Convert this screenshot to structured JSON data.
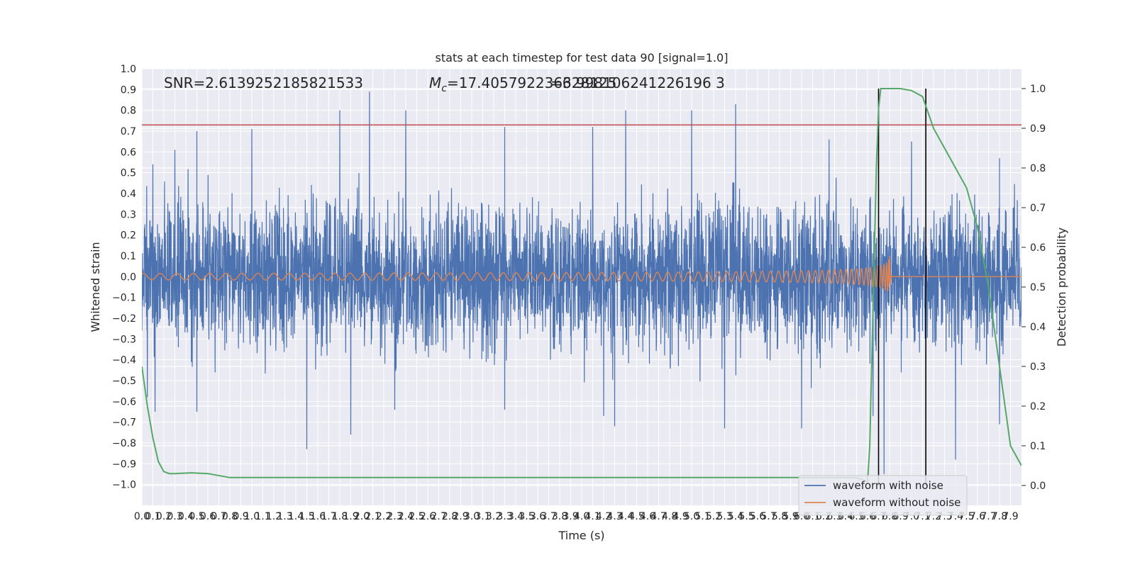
{
  "chart_data": {
    "type": "line",
    "title": "stats at each timestep for test data 90 [signal=1.0]",
    "xlabel": "Time (s)",
    "ylabel": "Whitened strain",
    "ylabel_right": "Detection probability",
    "xlim": [
      0.0,
      8.0
    ],
    "ylim": [
      -1.1,
      1.0
    ],
    "ylim_right": [
      -0.05,
      1.05
    ],
    "grid": true,
    "legend_position": "lower-right",
    "annotations": {
      "snr": "SNR=2.6139252185821533",
      "mc_symbol": "M",
      "mc_subscript": "c",
      "mc_value": "=17.405792236328125",
      "overlap": "=6.998106241226196 3"
    },
    "x_tick_labels": [
      "0.0",
      "0.1",
      "0.2",
      "0.3",
      "0.4",
      "0.5",
      "0.6",
      "0.7",
      "0.8",
      "0.9",
      "1.0",
      "1.1",
      "1.2",
      "1.3",
      "1.4",
      "1.5",
      "1.6",
      "1.7",
      "1.8",
      "1.9",
      "2.0",
      "2.1",
      "2.2",
      "2.3",
      "2.4",
      "2.5",
      "2.6",
      "2.7",
      "2.8",
      "2.9",
      "3.0",
      "3.1",
      "3.2",
      "3.3",
      "3.4",
      "3.5",
      "3.6",
      "3.7",
      "3.8",
      "3.9",
      "4.0",
      "4.1",
      "4.2",
      "4.3",
      "4.4",
      "4.5",
      "4.6",
      "4.7",
      "4.8",
      "4.9",
      "5.0",
      "5.1",
      "5.2",
      "5.3",
      "5.4",
      "5.5",
      "5.6",
      "5.7",
      "5.8",
      "5.9",
      "6.0",
      "6.1",
      "6.2",
      "6.3",
      "6.4",
      "6.5",
      "6.6",
      "6.7",
      "6.8",
      "6.9",
      "7.0",
      "7.1",
      "7.2",
      "7.3",
      "7.4",
      "7.5",
      "7.6",
      "7.7",
      "7.8",
      "7.9"
    ],
    "y_tick_labels": [
      "1.0",
      "0.9",
      "0.8",
      "0.7",
      "0.6",
      "0.5",
      "0.4",
      "0.3",
      "0.2",
      "0.1",
      "0.0",
      "−0.1",
      "−0.2",
      "−0.3",
      "−0.4",
      "−0.5",
      "−0.6",
      "−0.7",
      "−0.8",
      "−0.9",
      "−1.0"
    ],
    "y_tick_values": [
      1.0,
      0.9,
      0.8,
      0.7,
      0.6,
      0.5,
      0.4,
      0.3,
      0.2,
      0.1,
      0.0,
      -0.1,
      -0.2,
      -0.3,
      -0.4,
      -0.5,
      -0.6,
      -0.7,
      -0.8,
      -0.9,
      -1.0
    ],
    "y2_tick_labels": [
      "1.0",
      "0.9",
      "0.8",
      "0.7",
      "0.6",
      "0.5",
      "0.4",
      "0.3",
      "0.2",
      "0.1",
      "0.0"
    ],
    "y2_tick_values": [
      1.0,
      0.9,
      0.8,
      0.7,
      0.6,
      0.5,
      0.4,
      0.3,
      0.2,
      0.1,
      0.0
    ],
    "threshold_line": {
      "y": 0.73,
      "color": "#c44e52"
    },
    "vertical_lines": [
      6.7,
      7.13
    ],
    "series": [
      {
        "name": "waveform with noise",
        "color": "#4c72b0",
        "envelope_peaks_upper": [
          [
            0.1,
            0.54
          ],
          [
            0.3,
            0.61
          ],
          [
            0.5,
            0.7
          ],
          [
            1.0,
            0.71
          ],
          [
            1.8,
            0.8
          ],
          [
            2.07,
            0.89
          ],
          [
            2.4,
            0.8
          ],
          [
            3.3,
            0.72
          ],
          [
            4.1,
            0.72
          ],
          [
            4.4,
            0.8
          ],
          [
            5.0,
            0.8
          ],
          [
            5.4,
            0.83
          ],
          [
            6.25,
            0.66
          ],
          [
            7.0,
            0.65
          ],
          [
            7.8,
            0.57
          ]
        ],
        "envelope_peaks_lower": [
          [
            0.05,
            -0.58
          ],
          [
            0.12,
            -0.65
          ],
          [
            0.5,
            -0.65
          ],
          [
            1.5,
            -0.83
          ],
          [
            1.9,
            -0.76
          ],
          [
            2.3,
            -0.64
          ],
          [
            3.3,
            -0.64
          ],
          [
            4.2,
            -0.67
          ],
          [
            4.3,
            -0.72
          ],
          [
            5.3,
            -0.73
          ],
          [
            6.0,
            -0.73
          ],
          [
            6.65,
            -0.67
          ],
          [
            6.75,
            -0.95
          ],
          [
            7.4,
            -0.88
          ],
          [
            7.8,
            -0.71
          ]
        ]
      },
      {
        "name": "waveform without noise",
        "color": "#dd8452",
        "chirp_merger_time": 6.8,
        "chirp_peak_amplitude": 0.1
      },
      {
        "name": "detection probability",
        "color": "#55a868",
        "axis": "right",
        "x": [
          0.0,
          0.05,
          0.1,
          0.15,
          0.2,
          0.25,
          0.3,
          0.45,
          0.6,
          0.8,
          1.5,
          3.0,
          5.0,
          6.0,
          6.5,
          6.6,
          6.62,
          6.65,
          6.68,
          6.7,
          6.72,
          6.75,
          6.8,
          6.9,
          7.0,
          7.1,
          7.15,
          7.2,
          7.3,
          7.4,
          7.5,
          7.6,
          7.7,
          7.8,
          7.9,
          8.0
        ],
        "y": [
          0.3,
          0.2,
          0.12,
          0.06,
          0.035,
          0.03,
          0.03,
          0.032,
          0.03,
          0.02,
          0.02,
          0.02,
          0.02,
          0.02,
          0.02,
          0.01,
          0.1,
          0.45,
          0.8,
          0.95,
          1.0,
          1.0,
          1.0,
          1.0,
          0.995,
          0.98,
          0.94,
          0.9,
          0.85,
          0.8,
          0.75,
          0.65,
          0.5,
          0.3,
          0.1,
          0.05
        ]
      }
    ]
  }
}
